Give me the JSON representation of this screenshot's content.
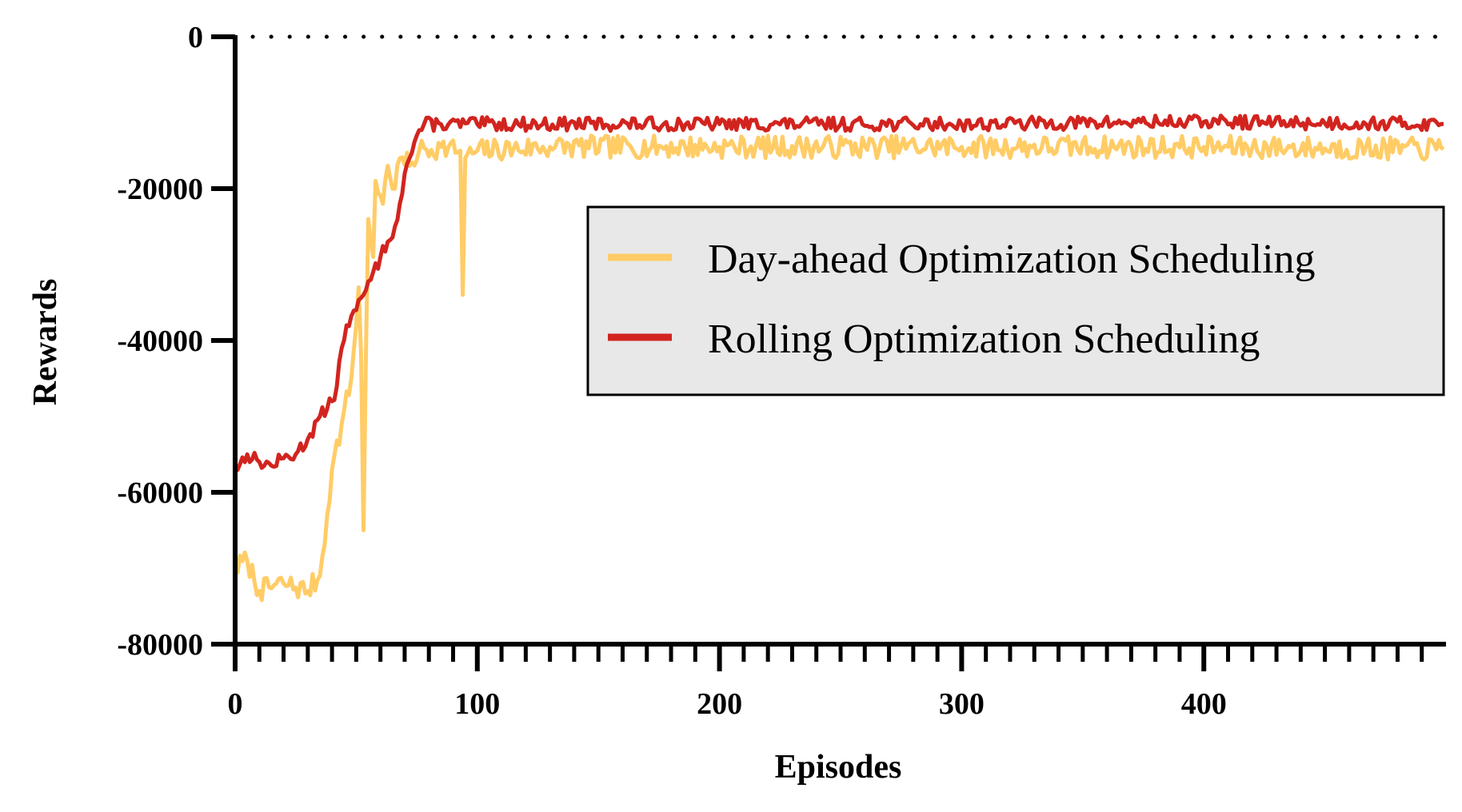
{
  "chart_data": {
    "type": "line",
    "title": "",
    "xlabel": "Episodes",
    "ylabel": "Rewards",
    "xlim": [
      0,
      500
    ],
    "ylim": [
      -80000,
      0
    ],
    "xticks": [
      0,
      100,
      200,
      300,
      400
    ],
    "yticks": [
      0,
      -20000,
      -40000,
      -60000,
      -80000
    ],
    "ytick_labels": [
      "0",
      "-20000",
      "-40000",
      "-60000",
      "-80000"
    ],
    "reference_line": {
      "y": 0,
      "style": "dotted"
    },
    "legend_position": "center-right",
    "series": [
      {
        "name": "Day-ahead Optimization Scheduling",
        "color": "#ffcc66",
        "keypoints": [
          [
            0,
            -70000
          ],
          [
            5,
            -69000
          ],
          [
            10,
            -73000
          ],
          [
            20,
            -72000
          ],
          [
            30,
            -73000
          ],
          [
            35,
            -71000
          ],
          [
            38,
            -63000
          ],
          [
            40,
            -57000
          ],
          [
            44,
            -51000
          ],
          [
            48,
            -45000
          ],
          [
            50,
            -38000
          ],
          [
            51,
            -33000
          ],
          [
            52,
            -42000
          ],
          [
            53,
            -65000
          ],
          [
            54,
            -42000
          ],
          [
            55,
            -24000
          ],
          [
            57,
            -29000
          ],
          [
            58,
            -19000
          ],
          [
            61,
            -22000
          ],
          [
            63,
            -17000
          ],
          [
            66,
            -20000
          ],
          [
            68,
            -16000
          ],
          [
            72,
            -17000
          ],
          [
            76,
            -15000
          ],
          [
            85,
            -14500
          ],
          [
            93,
            -15000
          ],
          [
            94,
            -34000
          ],
          [
            95,
            -16000
          ],
          [
            100,
            -15000
          ],
          [
            130,
            -14500
          ],
          [
            200,
            -14500
          ],
          [
            300,
            -14500
          ],
          [
            400,
            -14500
          ],
          [
            499,
            -14800
          ]
        ],
        "noise": 1500,
        "seed": 7
      },
      {
        "name": "Rolling Optimization Scheduling",
        "color": "#d2241f",
        "keypoints": [
          [
            0,
            -57000
          ],
          [
            5,
            -55000
          ],
          [
            10,
            -56000
          ],
          [
            15,
            -56500
          ],
          [
            20,
            -55500
          ],
          [
            25,
            -55000
          ],
          [
            30,
            -53000
          ],
          [
            35,
            -50000
          ],
          [
            38,
            -49000
          ],
          [
            40,
            -48000
          ],
          [
            42,
            -46000
          ],
          [
            44,
            -41000
          ],
          [
            46,
            -38000
          ],
          [
            50,
            -36000
          ],
          [
            53,
            -34000
          ],
          [
            56,
            -32000
          ],
          [
            60,
            -29000
          ],
          [
            63,
            -27000
          ],
          [
            66,
            -25000
          ],
          [
            68,
            -22000
          ],
          [
            70,
            -18000
          ],
          [
            72,
            -16000
          ],
          [
            75,
            -13000
          ],
          [
            78,
            -11500
          ],
          [
            85,
            -11500
          ],
          [
            100,
            -11500
          ],
          [
            200,
            -11500
          ],
          [
            300,
            -11500
          ],
          [
            400,
            -11200
          ],
          [
            499,
            -11500
          ]
        ],
        "noise": 900,
        "seed": 13
      }
    ]
  }
}
